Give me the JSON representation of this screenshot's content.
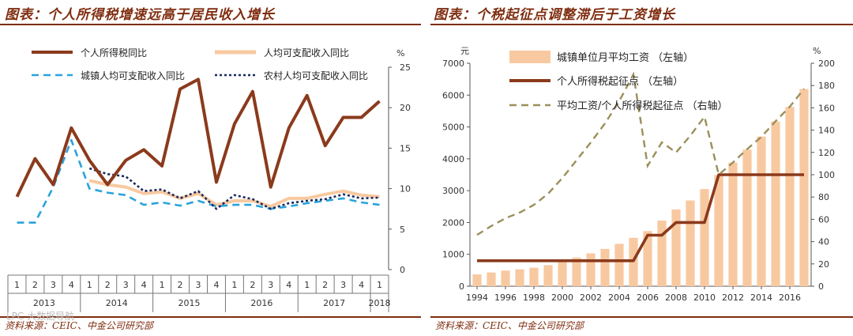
{
  "left": {
    "title": "图表：个人所得税增速远高于居民收入增长",
    "source": "资料来源：CEIC、中金公司研究部",
    "watermark": "LPC 大数据导航",
    "chart_data": {
      "type": "line",
      "unit": "%",
      "ylim": [
        0,
        25
      ],
      "y_ticks": [
        0,
        5,
        10,
        15,
        20,
        25
      ],
      "quarters": [
        "1",
        "2",
        "3",
        "4",
        "1",
        "2",
        "3",
        "4",
        "1",
        "2",
        "3",
        "4",
        "1",
        "2",
        "3",
        "4",
        "1",
        "2",
        "3",
        "4",
        "1"
      ],
      "years": [
        "2013",
        "2014",
        "2015",
        "2016",
        "2017",
        "2018"
      ],
      "series": [
        {
          "name": "个人所得税同比",
          "color": "#8b3a1c",
          "style": "solid-thick",
          "values": [
            9,
            13.7,
            10.5,
            17.5,
            13.5,
            10.5,
            13.5,
            14.8,
            12.8,
            22.3,
            23.5,
            10.8,
            18,
            22,
            10.2,
            17.5,
            21.5,
            15.3,
            18.8,
            18.8,
            20.8
          ]
        },
        {
          "name": "人均可支配收入同比",
          "color": "#f8c9a1",
          "style": "solid",
          "values": [
            null,
            null,
            null,
            null,
            11,
            10.5,
            10.2,
            9.4,
            9.6,
            8.8,
            9.4,
            8,
            8.5,
            8.5,
            7.8,
            8.8,
            8.8,
            9.3,
            9.7,
            9.2,
            9
          ]
        },
        {
          "name": "城镇人均可支配收入同比",
          "color": "#29a3dc",
          "style": "dash",
          "values": [
            5.8,
            5.8,
            10.2,
            16,
            10,
            9.5,
            9.2,
            8,
            8.3,
            7.9,
            8.5,
            7.8,
            8,
            8,
            7.5,
            7.8,
            8.2,
            8.5,
            8.8,
            8.3,
            8
          ]
        },
        {
          "name": "农村人均可支配收入同比",
          "color": "#1a2a5e",
          "style": "dot",
          "values": [
            null,
            null,
            null,
            null,
            12.5,
            11.8,
            11.5,
            9.7,
            9.9,
            8.8,
            9.7,
            7.5,
            9.2,
            8.7,
            7.5,
            8.2,
            8.5,
            8.7,
            9.3,
            8.8,
            8.9
          ]
        }
      ]
    }
  },
  "right": {
    "title": "图表：个税起征点调整滞后于工资增长",
    "source": "资料来源：CEIC、中金公司研究部",
    "chart_data": {
      "type": "bar+line",
      "left_unit": "元",
      "right_unit": "%",
      "ylim_left": [
        0,
        7000
      ],
      "ylim_right": [
        0,
        200
      ],
      "y_ticks_left": [
        0,
        1000,
        2000,
        3000,
        4000,
        5000,
        6000,
        7000
      ],
      "y_ticks_right": [
        0,
        20,
        40,
        60,
        80,
        100,
        120,
        140,
        160,
        180,
        200
      ],
      "years": [
        1994,
        1995,
        1996,
        1997,
        1998,
        1999,
        2000,
        2001,
        2002,
        2003,
        2004,
        2005,
        2006,
        2007,
        2008,
        2009,
        2010,
        2011,
        2012,
        2013,
        2014,
        2015,
        2016,
        2017
      ],
      "x_tick_labels": [
        "1994",
        "1996",
        "1998",
        "2000",
        "2002",
        "2004",
        "2006",
        "2008",
        "2010",
        "2012",
        "2014",
        "2016"
      ],
      "series": [
        {
          "name": "城镇单位月平均工资 （左轴）",
          "kind": "bar",
          "axis": "left",
          "color": "#f8c9a1",
          "values": [
            370,
            430,
            490,
            530,
            580,
            660,
            780,
            900,
            1030,
            1170,
            1330,
            1520,
            1730,
            2060,
            2410,
            2690,
            3050,
            3490,
            3880,
            4290,
            4700,
            5170,
            5630,
            6190
          ]
        },
        {
          "name": "个人所得税起征点 （左轴）",
          "kind": "line",
          "axis": "left",
          "color": "#8b3a1c",
          "values": [
            800,
            800,
            800,
            800,
            800,
            800,
            800,
            800,
            800,
            800,
            800,
            800,
            1600,
            1600,
            2000,
            2000,
            2000,
            3500,
            3500,
            3500,
            3500,
            3500,
            3500,
            3500
          ]
        },
        {
          "name": "平均工资/个人所得税起征点 （右轴）",
          "kind": "line",
          "axis": "right",
          "color": "#9b8f5a",
          "style": "dash",
          "values": [
            46,
            54,
            61,
            66,
            73,
            83,
            97,
            113,
            129,
            146,
            166,
            190,
            108,
            129,
            120,
            135,
            152,
            100,
            111,
            123,
            134,
            148,
            161,
            177
          ]
        }
      ]
    }
  }
}
